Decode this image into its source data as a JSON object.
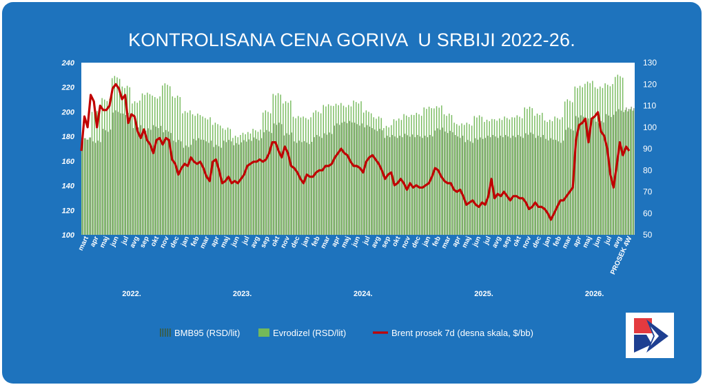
{
  "title": "KONTROLISANA CENA GORIVA  U SRBIJI 2022-26.",
  "colors": {
    "card_bg": "#1e73bd",
    "bmb_bar": "#6d8f5c",
    "diesel_bar": "#74b95a",
    "brent_line": "#c00000",
    "tick_text": "#ffffff"
  },
  "logo": {
    "icon": "arrow-logo-icon",
    "colors": [
      "#e43a3f",
      "#1e3f91",
      "#ffffff"
    ]
  },
  "chart_data": {
    "type": "bar+line",
    "title": "KONTROLISANA CENA GORIVA  U SRBIJI 2022-26.",
    "x_unit": "month",
    "categories": [
      "mart",
      "apr",
      "maj",
      "jun",
      "jul",
      "avg",
      "sep",
      "okt",
      "nov",
      "dec",
      "jan",
      "feb",
      "mar",
      "apr",
      "maj",
      "jun",
      "jul",
      "avg",
      "sep",
      "okt",
      "nov",
      "dec",
      "jan",
      "feb",
      "mar",
      "apr",
      "maj",
      "jun",
      "jul",
      "avg",
      "sep",
      "okt",
      "nov",
      "dec",
      "jan",
      "feb",
      "mar",
      "apr",
      "maj",
      "jun",
      "jul",
      "avg",
      "sep",
      "okt",
      "nov",
      "dec",
      "jan",
      "feb",
      "mar",
      "apr",
      "maj",
      "jun",
      "jul",
      "avg",
      "PROSEK 4W"
    ],
    "years": [
      {
        "label": "2022.",
        "center_index": 4.5
      },
      {
        "label": "2023.",
        "center_index": 15.5
      },
      {
        "label": "2024.",
        "center_index": 27.5
      },
      {
        "label": "2025.",
        "center_index": 39.5
      },
      {
        "label": "2026.",
        "center_index": 50.5
      }
    ],
    "y_left": {
      "min": 100,
      "max": 240,
      "ticks": [
        100,
        120,
        140,
        160,
        180,
        200,
        220,
        240
      ]
    },
    "y_right": {
      "min": 50,
      "max": 130,
      "ticks": [
        50,
        60,
        70,
        80,
        90,
        100,
        110,
        120,
        130
      ]
    },
    "legend_position": "bottom",
    "grid": false,
    "series": [
      {
        "name": "BMB95 (RSD/lit)",
        "axis": "left",
        "kind": "bar",
        "monthly_values": [
          178,
          176,
          185,
          200,
          198,
          188,
          186,
          188,
          184,
          176,
          172,
          178,
          176,
          172,
          176,
          174,
          177,
          178,
          184,
          190,
          182,
          176,
          175,
          180,
          182,
          190,
          192,
          190,
          188,
          185,
          180,
          180,
          181,
          180,
          180,
          186,
          184,
          180,
          176,
          178,
          180,
          180,
          180,
          180,
          182,
          180,
          178,
          176,
          186,
          196,
          194,
          192,
          197,
          201,
          203
        ]
      },
      {
        "name": "Evrodizel (RSD/lit)",
        "axis": "left",
        "kind": "bar",
        "monthly_values": [
          178,
          200,
          210,
          228,
          220,
          208,
          215,
          212,
          222,
          212,
          200,
          198,
          195,
          190,
          186,
          180,
          183,
          185,
          200,
          214,
          208,
          196,
          195,
          200,
          205,
          206,
          205,
          208,
          200,
          195,
          188,
          194,
          197,
          198,
          203,
          204,
          198,
          190,
          190,
          196,
          193,
          194,
          195,
          196,
          203,
          198,
          193,
          195,
          209,
          220,
          224,
          220,
          222,
          229,
          201
        ]
      },
      {
        "name": "Brent prosek  7d (desna skala, $/bb)",
        "axis": "right",
        "kind": "line",
        "weekly_values": [
          89,
          105,
          100,
          115,
          112,
          100,
          110,
          108,
          108,
          110,
          118,
          120,
          118,
          113,
          115,
          102,
          106,
          105,
          98,
          95,
          99,
          94,
          92,
          88,
          94,
          95,
          92,
          95,
          94,
          85,
          83,
          78,
          81,
          83,
          82,
          86,
          84,
          83,
          84,
          81,
          77,
          75,
          84,
          85,
          80,
          74,
          75,
          77,
          74,
          75,
          74,
          76,
          78,
          82,
          83,
          84,
          84,
          85,
          84,
          85,
          88,
          93,
          93,
          89,
          86,
          91,
          88,
          82,
          81,
          79,
          76,
          74,
          78,
          77,
          77,
          79,
          80,
          80,
          82,
          82,
          83,
          86,
          88,
          90,
          88,
          87,
          84,
          82,
          82,
          81,
          79,
          84,
          86,
          87,
          85,
          83,
          80,
          76,
          78,
          79,
          73,
          74,
          76,
          74,
          71,
          74,
          72,
          73,
          72,
          72,
          73,
          74,
          77,
          81,
          80,
          77,
          75,
          74,
          74,
          71,
          70,
          71,
          68,
          64,
          65,
          66,
          64,
          63,
          65,
          64,
          68,
          76,
          67,
          69,
          68,
          70,
          68,
          66,
          68,
          68,
          67,
          67,
          65,
          62,
          63,
          65,
          63,
          63,
          62,
          60,
          57,
          60,
          63,
          66,
          66,
          68,
          70,
          72,
          94,
          101,
          102,
          104,
          93,
          104,
          105,
          107,
          98,
          96,
          90,
          78,
          72,
          82,
          93,
          87,
          91,
          89
        ]
      }
    ]
  },
  "legend": [
    {
      "label": "BMB95 (RSD/lit)",
      "kind": "bar-dark"
    },
    {
      "label": "Evrodizel (RSD/lit)",
      "kind": "bar-light"
    },
    {
      "label": "Brent prosek  7d (desna skala, $/bb)",
      "kind": "line"
    }
  ]
}
